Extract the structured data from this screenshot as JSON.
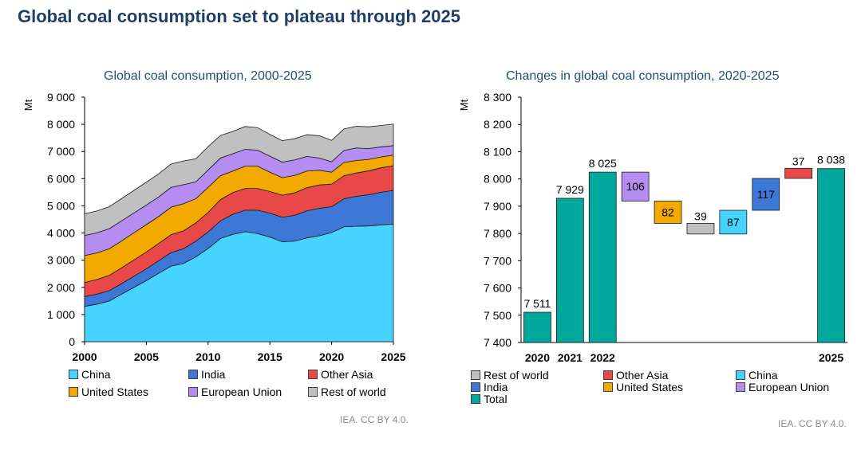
{
  "main_title": "Global coal consumption set to plateau through 2025",
  "credit_left": "IEA. CC BY 4.0.",
  "credit_right": "IEA. CC BY 4.0.",
  "colors": {
    "China": "#47d3ff",
    "India": "#3d78d6",
    "Other Asia": "#e84848",
    "United States": "#f2a900",
    "European Union": "#b58cf0",
    "Rest of world": "#c0c0c0",
    "Total": "#00a89b"
  },
  "chart_data": [
    {
      "type": "area",
      "title": "Global coal consumption, 2000-2025",
      "ylabel": "Mt",
      "x": [
        2000,
        2001,
        2002,
        2003,
        2004,
        2005,
        2006,
        2007,
        2008,
        2009,
        2010,
        2011,
        2012,
        2013,
        2014,
        2015,
        2016,
        2017,
        2018,
        2019,
        2020,
        2021,
        2022,
        2023,
        2024,
        2025
      ],
      "xticks": [
        2000,
        2005,
        2010,
        2015,
        2020,
        2025
      ],
      "ylim": [
        0,
        9000
      ],
      "yticks": [
        "0",
        "1 000",
        "2 000",
        "3 000",
        "4 000",
        "5 000",
        "6 000",
        "7 000",
        "8 000",
        "9 000"
      ],
      "stack_order": [
        "China",
        "India",
        "Other Asia",
        "United States",
        "European Union",
        "Rest of world"
      ],
      "series": [
        {
          "name": "China",
          "values": [
            1300,
            1380,
            1500,
            1750,
            2000,
            2250,
            2520,
            2780,
            2880,
            3120,
            3430,
            3800,
            3950,
            4050,
            3980,
            3850,
            3680,
            3700,
            3820,
            3900,
            4020,
            4230,
            4250,
            4260,
            4300,
            4330
          ]
        },
        {
          "name": "India",
          "values": [
            360,
            370,
            380,
            390,
            410,
            430,
            460,
            500,
            540,
            580,
            610,
            650,
            740,
            790,
            860,
            880,
            900,
            950,
            1000,
            1010,
            950,
            1030,
            1100,
            1150,
            1200,
            1240
          ]
        },
        {
          "name": "Other Asia",
          "values": [
            520,
            540,
            560,
            580,
            600,
            620,
            640,
            660,
            660,
            670,
            720,
            780,
            800,
            800,
            800,
            800,
            810,
            830,
            850,
            860,
            830,
            850,
            860,
            880,
            900,
            910
          ]
        },
        {
          "name": "United States",
          "values": [
            990,
            980,
            980,
            990,
            1000,
            1010,
            990,
            1010,
            1000,
            890,
            920,
            880,
            790,
            820,
            820,
            710,
            650,
            640,
            610,
            540,
            440,
            490,
            460,
            420,
            400,
            390
          ]
        },
        {
          "name": "European Union",
          "values": [
            740,
            740,
            740,
            740,
            730,
            720,
            720,
            730,
            700,
            620,
            640,
            650,
            640,
            620,
            590,
            590,
            570,
            570,
            540,
            450,
            380,
            440,
            460,
            400,
            370,
            350
          ]
        },
        {
          "name": "Rest of world",
          "values": [
            800,
            800,
            810,
            820,
            830,
            840,
            850,
            860,
            870,
            850,
            860,
            830,
            820,
            840,
            830,
            800,
            790,
            780,
            800,
            820,
            790,
            790,
            800,
            800,
            790,
            790
          ]
        }
      ],
      "legend": [
        "China",
        "India",
        "Other Asia",
        "United States",
        "European Union",
        "Rest of world"
      ],
      "legend_placement": "bottom"
    },
    {
      "type": "bar",
      "subtype": "waterfall",
      "title": "Changes in global coal consumption, 2020-2025",
      "ylabel": "Mt",
      "ylim": [
        7400,
        8300
      ],
      "yticks": [
        "7 400",
        "7 500",
        "7 600",
        "7 700",
        "7 800",
        "7 900",
        "8 000",
        "8 100",
        "8 200",
        "8 300"
      ],
      "categories": [
        "2020",
        "2021",
        "2022",
        "",
        "",
        "",
        "",
        "",
        "",
        "2025"
      ],
      "bars": [
        {
          "series": "Total",
          "start": 7400,
          "end": 7511,
          "label": "7 511"
        },
        {
          "series": "Total",
          "start": 7400,
          "end": 7929,
          "label": "7 929"
        },
        {
          "series": "Total",
          "start": 7400,
          "end": 8025,
          "label": "8 025"
        },
        {
          "series": "European Union",
          "start": 8025,
          "end": 7919,
          "label": "106"
        },
        {
          "series": "United States",
          "start": 7919,
          "end": 7837,
          "label": "82"
        },
        {
          "series": "Rest of world",
          "start": 7837,
          "end": 7798,
          "label": "39"
        },
        {
          "series": "China",
          "start": 7798,
          "end": 7885,
          "label": "87"
        },
        {
          "series": "India",
          "start": 7885,
          "end": 8002,
          "label": "117"
        },
        {
          "series": "Other Asia",
          "start": 8002,
          "end": 8039,
          "label": "37"
        },
        {
          "series": "Total",
          "start": 7400,
          "end": 8038,
          "label": "8 038"
        }
      ],
      "legend": [
        "Rest of world",
        "Other Asia",
        "China",
        "India",
        "United States",
        "European Union",
        "Total"
      ],
      "legend_placement": "bottom"
    }
  ]
}
